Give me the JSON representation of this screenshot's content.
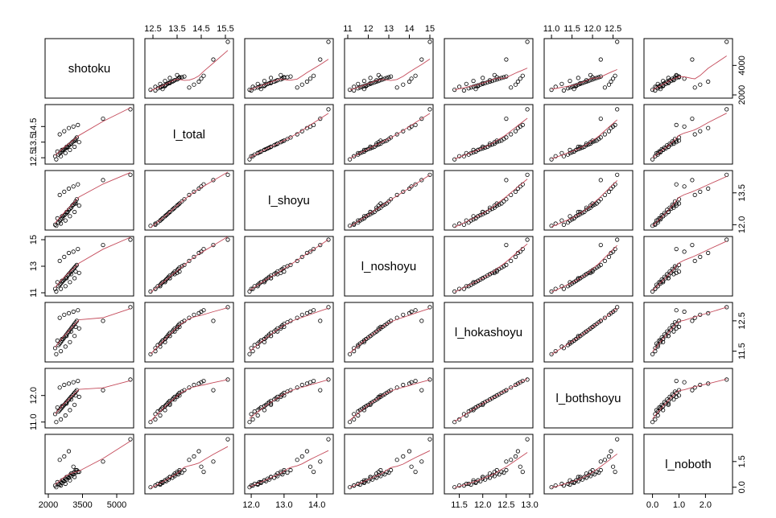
{
  "chart_data": {
    "type": "scatter",
    "subtype": "scatterplot-matrix",
    "variables": [
      "shotoku",
      "l_total",
      "l_shoyu",
      "l_noshoyu",
      "l_hokashoyu",
      "l_bothshoyu",
      "l_noboth"
    ],
    "ranges": [
      [
        2000,
        5600
      ],
      [
        12.3,
        15.7
      ],
      [
        11.9,
        14.4
      ],
      [
        11.0,
        15.0
      ],
      [
        11.25,
        13.0
      ],
      [
        10.9,
        12.9
      ],
      [
        -0.2,
        2.9
      ]
    ],
    "tick_labels": [
      [
        "2000",
        "3500",
        "5000"
      ],
      [
        "12.5",
        "13.5",
        "14.5",
        "15.5"
      ],
      [
        "12.0",
        "13.0",
        "14.0"
      ],
      [
        "11",
        "12",
        "13",
        "14",
        "15"
      ],
      [
        "11.5",
        "12.0",
        "12.5",
        "13.0"
      ],
      [
        "11.0",
        "11.5",
        "12.0",
        "12.5"
      ],
      [
        "0.0",
        "1.0",
        "2.0"
      ]
    ],
    "y_tick_labels": [
      [
        "2000",
        "4000"
      ],
      [
        "12.5",
        "13.5",
        "14.5"
      ],
      [
        "12.0",
        "13.5"
      ],
      [
        "11",
        "13",
        "15"
      ],
      [
        "11.5",
        "12.5"
      ],
      [
        "11.0",
        "12.0"
      ],
      [
        "0.0",
        "1.5"
      ]
    ],
    "point_style": "open-circle",
    "smoother": "lowess",
    "colors": {
      "points": "#000000",
      "smoother": "#c44a5a",
      "frame": "#000000"
    },
    "observations": {
      "shotoku": [
        2300,
        2450,
        2500,
        2550,
        2600,
        2650,
        2700,
        2750,
        2800,
        2850,
        2900,
        2950,
        3000,
        3050,
        3100,
        3150,
        3200,
        3250,
        2400,
        2600,
        2800,
        3000,
        3200,
        2350,
        2550,
        2750,
        2950,
        3150,
        3350,
        2500,
        2700,
        2900,
        3100,
        3300,
        4400,
        5600
      ],
      "l_total": [
        12.6,
        12.7,
        12.8,
        12.85,
        12.9,
        13.0,
        13.05,
        13.1,
        13.15,
        13.2,
        13.3,
        13.35,
        13.4,
        13.5,
        13.55,
        13.6,
        13.7,
        13.8,
        12.9,
        13.0,
        13.2,
        13.4,
        13.6,
        12.4,
        12.6,
        12.8,
        13.0,
        13.2,
        13.5,
        14.0,
        14.2,
        14.4,
        14.5,
        14.6,
        15.0,
        15.6
      ],
      "l_shoyu": [
        12.0,
        12.1,
        12.2,
        12.25,
        12.3,
        12.4,
        12.45,
        12.5,
        12.55,
        12.6,
        12.7,
        12.75,
        12.8,
        12.9,
        12.95,
        13.0,
        13.1,
        13.2,
        12.3,
        12.4,
        12.6,
        12.8,
        13.0,
        11.95,
        12.05,
        12.2,
        12.4,
        12.6,
        12.9,
        13.4,
        13.55,
        13.7,
        13.8,
        13.9,
        14.1,
        14.35
      ],
      "l_noshoyu": [
        11.3,
        11.5,
        11.6,
        11.7,
        11.8,
        11.9,
        12.0,
        12.1,
        12.2,
        12.3,
        12.4,
        12.5,
        12.6,
        12.7,
        12.8,
        12.9,
        13.0,
        13.1,
        11.8,
        11.9,
        12.1,
        12.4,
        12.6,
        11.1,
        11.3,
        11.5,
        11.8,
        12.1,
        12.5,
        13.4,
        13.7,
        14.0,
        14.1,
        14.3,
        14.6,
        15.0
      ],
      "l_hokashoyu": [
        11.6,
        11.7,
        11.75,
        11.8,
        11.85,
        11.9,
        11.95,
        12.0,
        12.05,
        12.1,
        12.15,
        12.2,
        12.25,
        12.3,
        12.35,
        12.4,
        12.45,
        12.5,
        11.85,
        11.9,
        12.0,
        12.15,
        12.3,
        11.4,
        11.5,
        11.65,
        11.8,
        12.0,
        12.25,
        12.6,
        12.7,
        12.75,
        12.8,
        12.85,
        12.5,
        12.95
      ],
      "l_bothshoyu": [
        11.3,
        11.4,
        11.45,
        11.5,
        11.55,
        11.6,
        11.65,
        11.7,
        11.75,
        11.8,
        11.85,
        11.9,
        11.95,
        12.0,
        12.05,
        12.1,
        12.15,
        12.2,
        11.55,
        11.6,
        11.7,
        11.85,
        12.0,
        11.0,
        11.1,
        11.25,
        11.45,
        11.65,
        11.95,
        12.3,
        12.4,
        12.45,
        12.5,
        12.55,
        12.2,
        12.6
      ],
      "l_noboth": [
        0.1,
        0.2,
        0.15,
        0.3,
        0.25,
        0.4,
        0.35,
        0.5,
        0.45,
        0.6,
        0.55,
        0.7,
        0.65,
        0.8,
        0.75,
        0.9,
        0.85,
        1.0,
        0.3,
        0.4,
        0.6,
        0.8,
        1.0,
        0.0,
        0.1,
        0.2,
        0.4,
        0.6,
        0.9,
        1.6,
        1.8,
        2.1,
        1.2,
        0.9,
        1.5,
        2.8
      ]
    }
  }
}
